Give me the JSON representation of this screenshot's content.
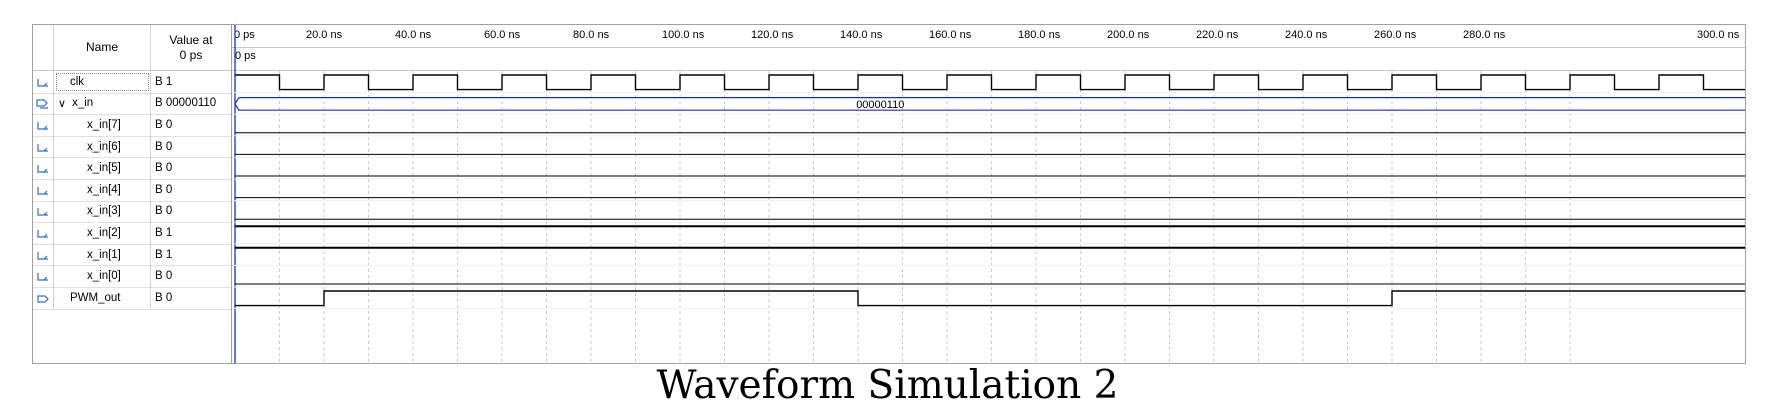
{
  "table": {
    "header_name": "Name",
    "header_value_line1": "Value at",
    "header_value_line2": "0 ps"
  },
  "ruler": {
    "cursor_label": "0 ps",
    "ticks": [
      "0 ps",
      "20.0 ns",
      "40.0 ns",
      "60.0 ns",
      "80.0 ns",
      "100.0 ns",
      "120.0 ns",
      "140.0 ns",
      "160.0 ns",
      "180.0 ns",
      "200.0 ns",
      "220.0 ns",
      "240.0 ns",
      "260.0 ns",
      "280.0 ns",
      "300.0 ns"
    ]
  },
  "signals": [
    {
      "icon": "input-pin-icon",
      "name": "clk",
      "value": "B 1",
      "kind": "clock"
    },
    {
      "icon": "input-bus-icon",
      "name": "x_in",
      "value": "B 00000110",
      "kind": "bus",
      "expanded": true,
      "bus_label": "00000110"
    },
    {
      "icon": "input-pin-icon",
      "name": "x_in[7]",
      "value": "B 0",
      "kind": "level",
      "level": 0
    },
    {
      "icon": "input-pin-icon",
      "name": "x_in[6]",
      "value": "B 0",
      "kind": "level",
      "level": 0
    },
    {
      "icon": "input-pin-icon",
      "name": "x_in[5]",
      "value": "B 0",
      "kind": "level",
      "level": 0
    },
    {
      "icon": "input-pin-icon",
      "name": "x_in[4]",
      "value": "B 0",
      "kind": "level",
      "level": 0
    },
    {
      "icon": "input-pin-icon",
      "name": "x_in[3]",
      "value": "B 0",
      "kind": "level",
      "level": 0
    },
    {
      "icon": "input-pin-icon",
      "name": "x_in[2]",
      "value": "B 1",
      "kind": "level",
      "level": 1
    },
    {
      "icon": "input-pin-icon",
      "name": "x_in[1]",
      "value": "B 1",
      "kind": "level",
      "level": 1
    },
    {
      "icon": "input-pin-icon",
      "name": "x_in[0]",
      "value": "B 0",
      "kind": "level",
      "level": 0
    },
    {
      "icon": "output-pin-icon",
      "name": "PWM_out",
      "value": "B 0",
      "kind": "pwm",
      "transitions_ns": [
        20,
        140,
        260
      ],
      "initial": 0
    }
  ],
  "clock_period_ns": 20,
  "caption": "Waveform Simulation 2"
}
